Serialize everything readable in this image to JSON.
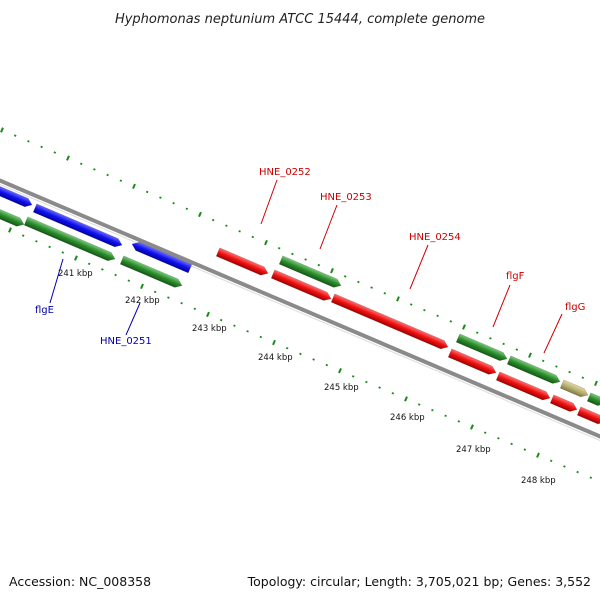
{
  "header": {
    "title": "Hyphomonas neptunium ATCC 15444, complete genome"
  },
  "footer": {
    "accession": "Accession: NC_008358",
    "topology": "Topology: circular; Length: 3,705,021 bp; Genes: 3,552"
  },
  "colors": {
    "backbone": "#8a8a8a",
    "dots": "#1a8a1a",
    "gene_blue": "#1010ee",
    "gene_red": "#ee1010",
    "gene_green": "#2a8a2a",
    "gene_khaki": "#b8b070",
    "label_red": "#cc0000",
    "label_blue": "#0000aa"
  },
  "ticks": [
    "241 kbp",
    "242 kbp",
    "243 kbp",
    "244 kbp",
    "245 kbp",
    "246 kbp",
    "247 kbp",
    "248 kbp"
  ],
  "gene_labels": [
    {
      "name": "flgE",
      "color": "blue"
    },
    {
      "name": "HNE_0251",
      "color": "blue"
    },
    {
      "name": "HNE_0252",
      "color": "red"
    },
    {
      "name": "HNE_0253",
      "color": "red"
    },
    {
      "name": "HNE_0254",
      "color": "red"
    },
    {
      "name": "flgF",
      "color": "red"
    },
    {
      "name": "flgG",
      "color": "red"
    }
  ]
}
